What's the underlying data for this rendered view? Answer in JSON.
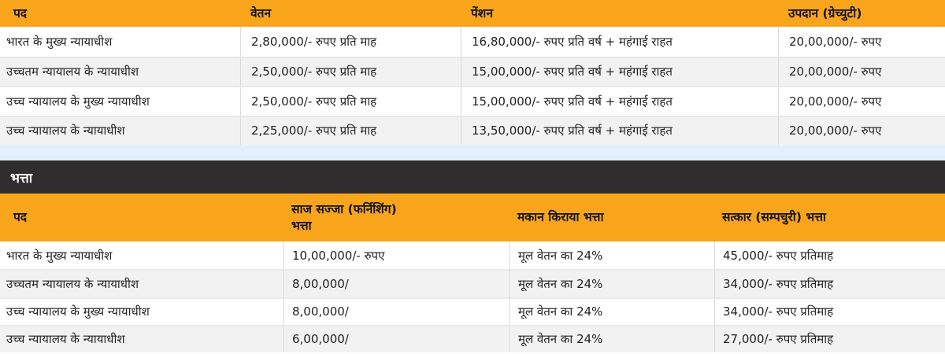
{
  "colors": {
    "header_bg": "#F8A51C",
    "banner_bg": "#2F2D2D",
    "divider_bg": "#E1F0FC",
    "row_alt_bg": "#F2F2F2",
    "row_border": "#E8E8E8",
    "cell_border": "#D9D9D9"
  },
  "salary_table": {
    "columns": [
      "पद",
      "वेतन",
      "पेंशन",
      "उपदान (ग्रेच्युटी)"
    ],
    "rows": [
      [
        "भारत के मुख्य न्यायाधीश",
        "2,80,000/- रुपए प्रति माह",
        "16,80,000/- रुपए प्रति वर्ष + महंगाई राहत",
        "20,00,000/- रुपए"
      ],
      [
        "उच्चतम न्यायालय के न्यायाधीश",
        "2,50,000/- रुपए प्रति माह",
        "15,00,000/- रुपए प्रति वर्ष + महंगाई राहत",
        "20,00,000/- रुपए"
      ],
      [
        "उच्च न्यायालय के मुख्य न्यायाधीश",
        "2,50,000/- रुपए प्रति माह",
        "15,00,000/- रुपए प्रति वर्ष + महंगाई राहत",
        "20,00,000/- रुपए"
      ],
      [
        "उच्च न्यायालय के न्यायाधीश",
        "2,25,000/- रुपए प्रति माह",
        "13,50,000/- रुपए प्रति वर्ष + महंगाई राहत",
        "20,00,000/- रुपए"
      ]
    ]
  },
  "allowance_banner": {
    "title": "भत्ता"
  },
  "allowance_table": {
    "columns": [
      "पद",
      "साज सज्जा (फर्निशिंग)\nभत्ता",
      "मकान किराया भत्ता",
      "सत्कार (सम्पचुरी) भत्ता"
    ],
    "rows": [
      [
        "भारत के मुख्य न्यायाधीश",
        "10,00,000/- रुपए",
        "मूल वेतन का 24%",
        "45,000/- रुपए प्रतिमाह"
      ],
      [
        "उच्चतम न्यायालय के न्यायाधीश",
        "8,00,000/",
        "मूल वेतन का 24%",
        "34,000/- रुपए प्रतिमाह"
      ],
      [
        "उच्च न्यायालय के मुख्य न्यायाधीश",
        "8,00,000/",
        "मूल वेतन का 24%",
        "34,000/- रुपए प्रतिमाह"
      ],
      [
        "उच्च न्यायालय के न्यायाधीश",
        "6,00,000/",
        "मूल वेतन का 24%",
        "27,000/- रुपए प्रतिमाह"
      ]
    ]
  }
}
